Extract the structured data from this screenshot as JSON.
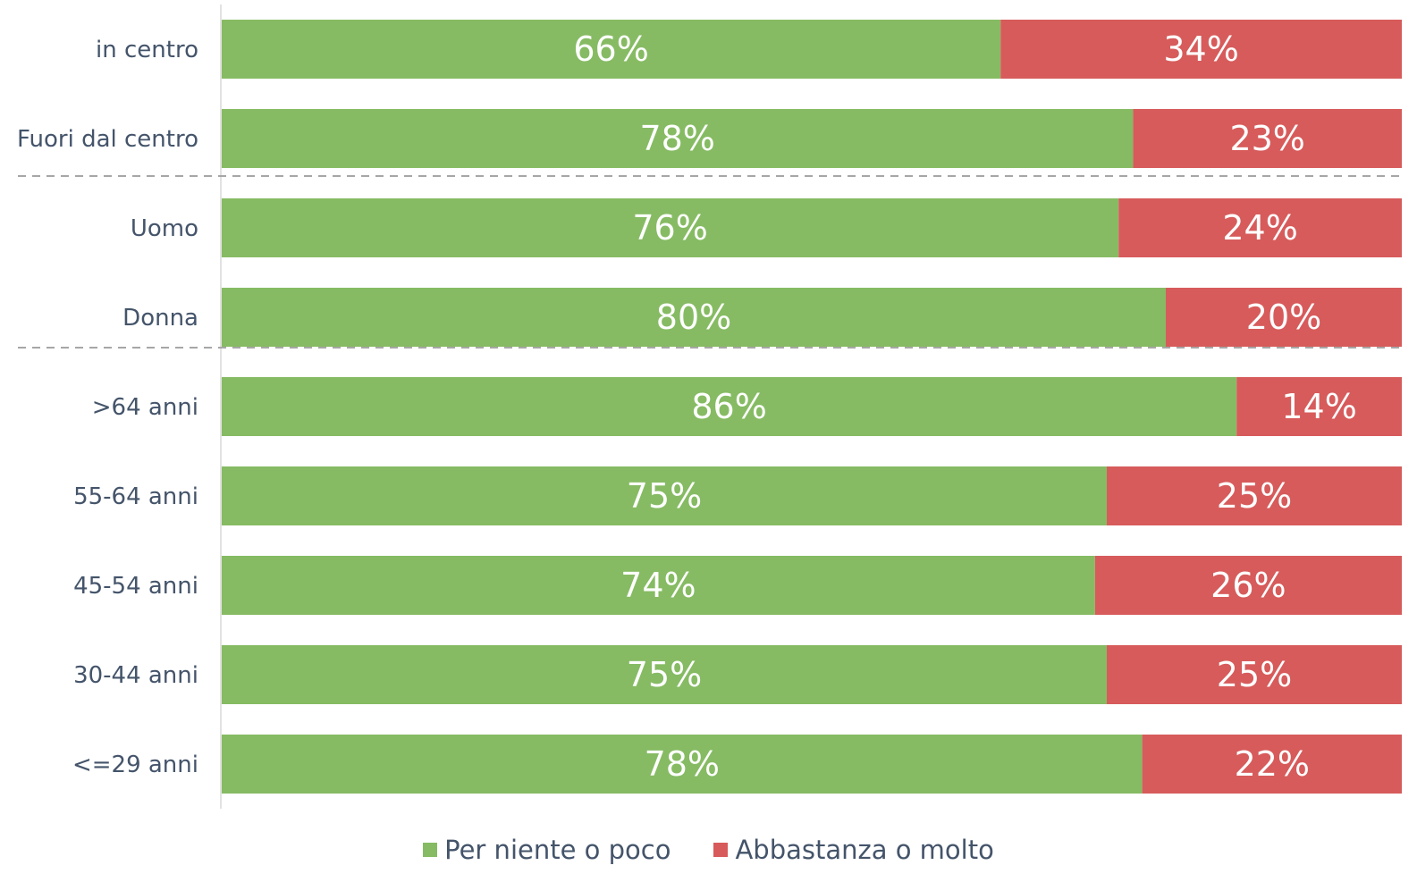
{
  "chart_data": {
    "type": "bar",
    "orientation": "horizontal",
    "stacked": true,
    "categories": [
      "in centro",
      "Fuori dal centro",
      "Uomo",
      "Donna",
      ">64 anni",
      "55-64 anni",
      "45-54 anni",
      "30-44 anni",
      "<=29 anni"
    ],
    "series": [
      {
        "name": "Per niente o poco",
        "color": "#86bb63",
        "values": [
          66,
          78,
          76,
          80,
          86,
          75,
          74,
          75,
          78
        ],
        "labels": [
          "66%",
          "78%",
          "76%",
          "80%",
          "86%",
          "75%",
          "74%",
          "75%",
          "78%"
        ]
      },
      {
        "name": "Abbastanza o molto",
        "color": "#d75b5b",
        "values": [
          34,
          23,
          24,
          20,
          14,
          25,
          26,
          25,
          22
        ],
        "labels": [
          "34%",
          "23%",
          "24%",
          "20%",
          "14%",
          "25%",
          "26%",
          "25%",
          "22%"
        ]
      }
    ],
    "group_separators_after": [
      1,
      3
    ],
    "xlim": [
      0,
      100
    ],
    "legend": "bottom",
    "grid": false
  }
}
